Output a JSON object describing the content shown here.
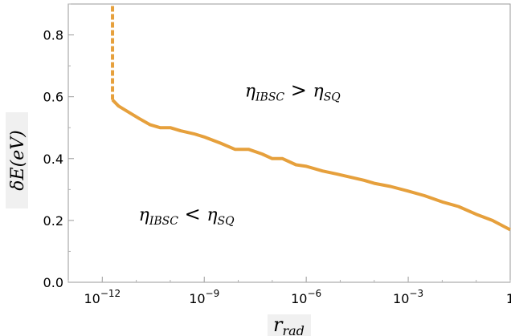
{
  "chart_data": {
    "type": "line",
    "title": "",
    "xlabel": "r",
    "xlabel_sub": "rad",
    "ylabel": "δE(eV)",
    "x_scale": "log",
    "xlim": [
      1e-13,
      1
    ],
    "ylim": [
      0.0,
      0.9
    ],
    "x_ticks": [
      {
        "value": 1e-12,
        "base": "10",
        "exp": "−12"
      },
      {
        "value": 1e-09,
        "base": "10",
        "exp": "−9"
      },
      {
        "value": 1e-06,
        "base": "10",
        "exp": "−6"
      },
      {
        "value": 0.001,
        "base": "10",
        "exp": "−3"
      },
      {
        "value": 1,
        "base": "1",
        "exp": ""
      }
    ],
    "y_ticks": [
      "0.0",
      "0.2",
      "0.4",
      "0.6",
      "0.8"
    ],
    "line_color": "#E6A03C",
    "vertical_dashed": {
      "x": 2e-12,
      "y_from": 0.59,
      "y_to": 0.9
    },
    "series": [
      {
        "x": [
          2e-12,
          3e-12,
          6e-12,
          1.2e-11,
          2.5e-11,
          5e-11,
          1e-10,
          2e-10,
          5e-10,
          1e-09,
          3e-09,
          8e-09,
          2e-08,
          5e-08,
          1e-07,
          2e-07,
          5e-07,
          1e-06,
          3e-06,
          8e-06,
          2e-05,
          5e-05,
          0.0001,
          0.0003,
          0.001,
          0.003,
          0.01,
          0.03,
          0.1,
          0.3,
          1
        ],
        "y": [
          0.59,
          0.57,
          0.55,
          0.53,
          0.51,
          0.5,
          0.5,
          0.49,
          0.48,
          0.47,
          0.45,
          0.43,
          0.43,
          0.415,
          0.4,
          0.4,
          0.38,
          0.375,
          0.36,
          0.35,
          0.34,
          0.33,
          0.32,
          0.31,
          0.295,
          0.28,
          0.26,
          0.245,
          0.22,
          0.2,
          0.17
        ]
      }
    ],
    "region_labels": [
      {
        "x": 4e-07,
        "y": 0.6,
        "main": "η",
        "sub_left": "IBSC",
        "op": ">",
        "main2": "η",
        "sub_right": "SQ"
      },
      {
        "x": 3e-10,
        "y": 0.2,
        "main": "η",
        "sub_left": "IBSC",
        "op": "<",
        "main2": "η",
        "sub_right": "SQ"
      }
    ]
  }
}
